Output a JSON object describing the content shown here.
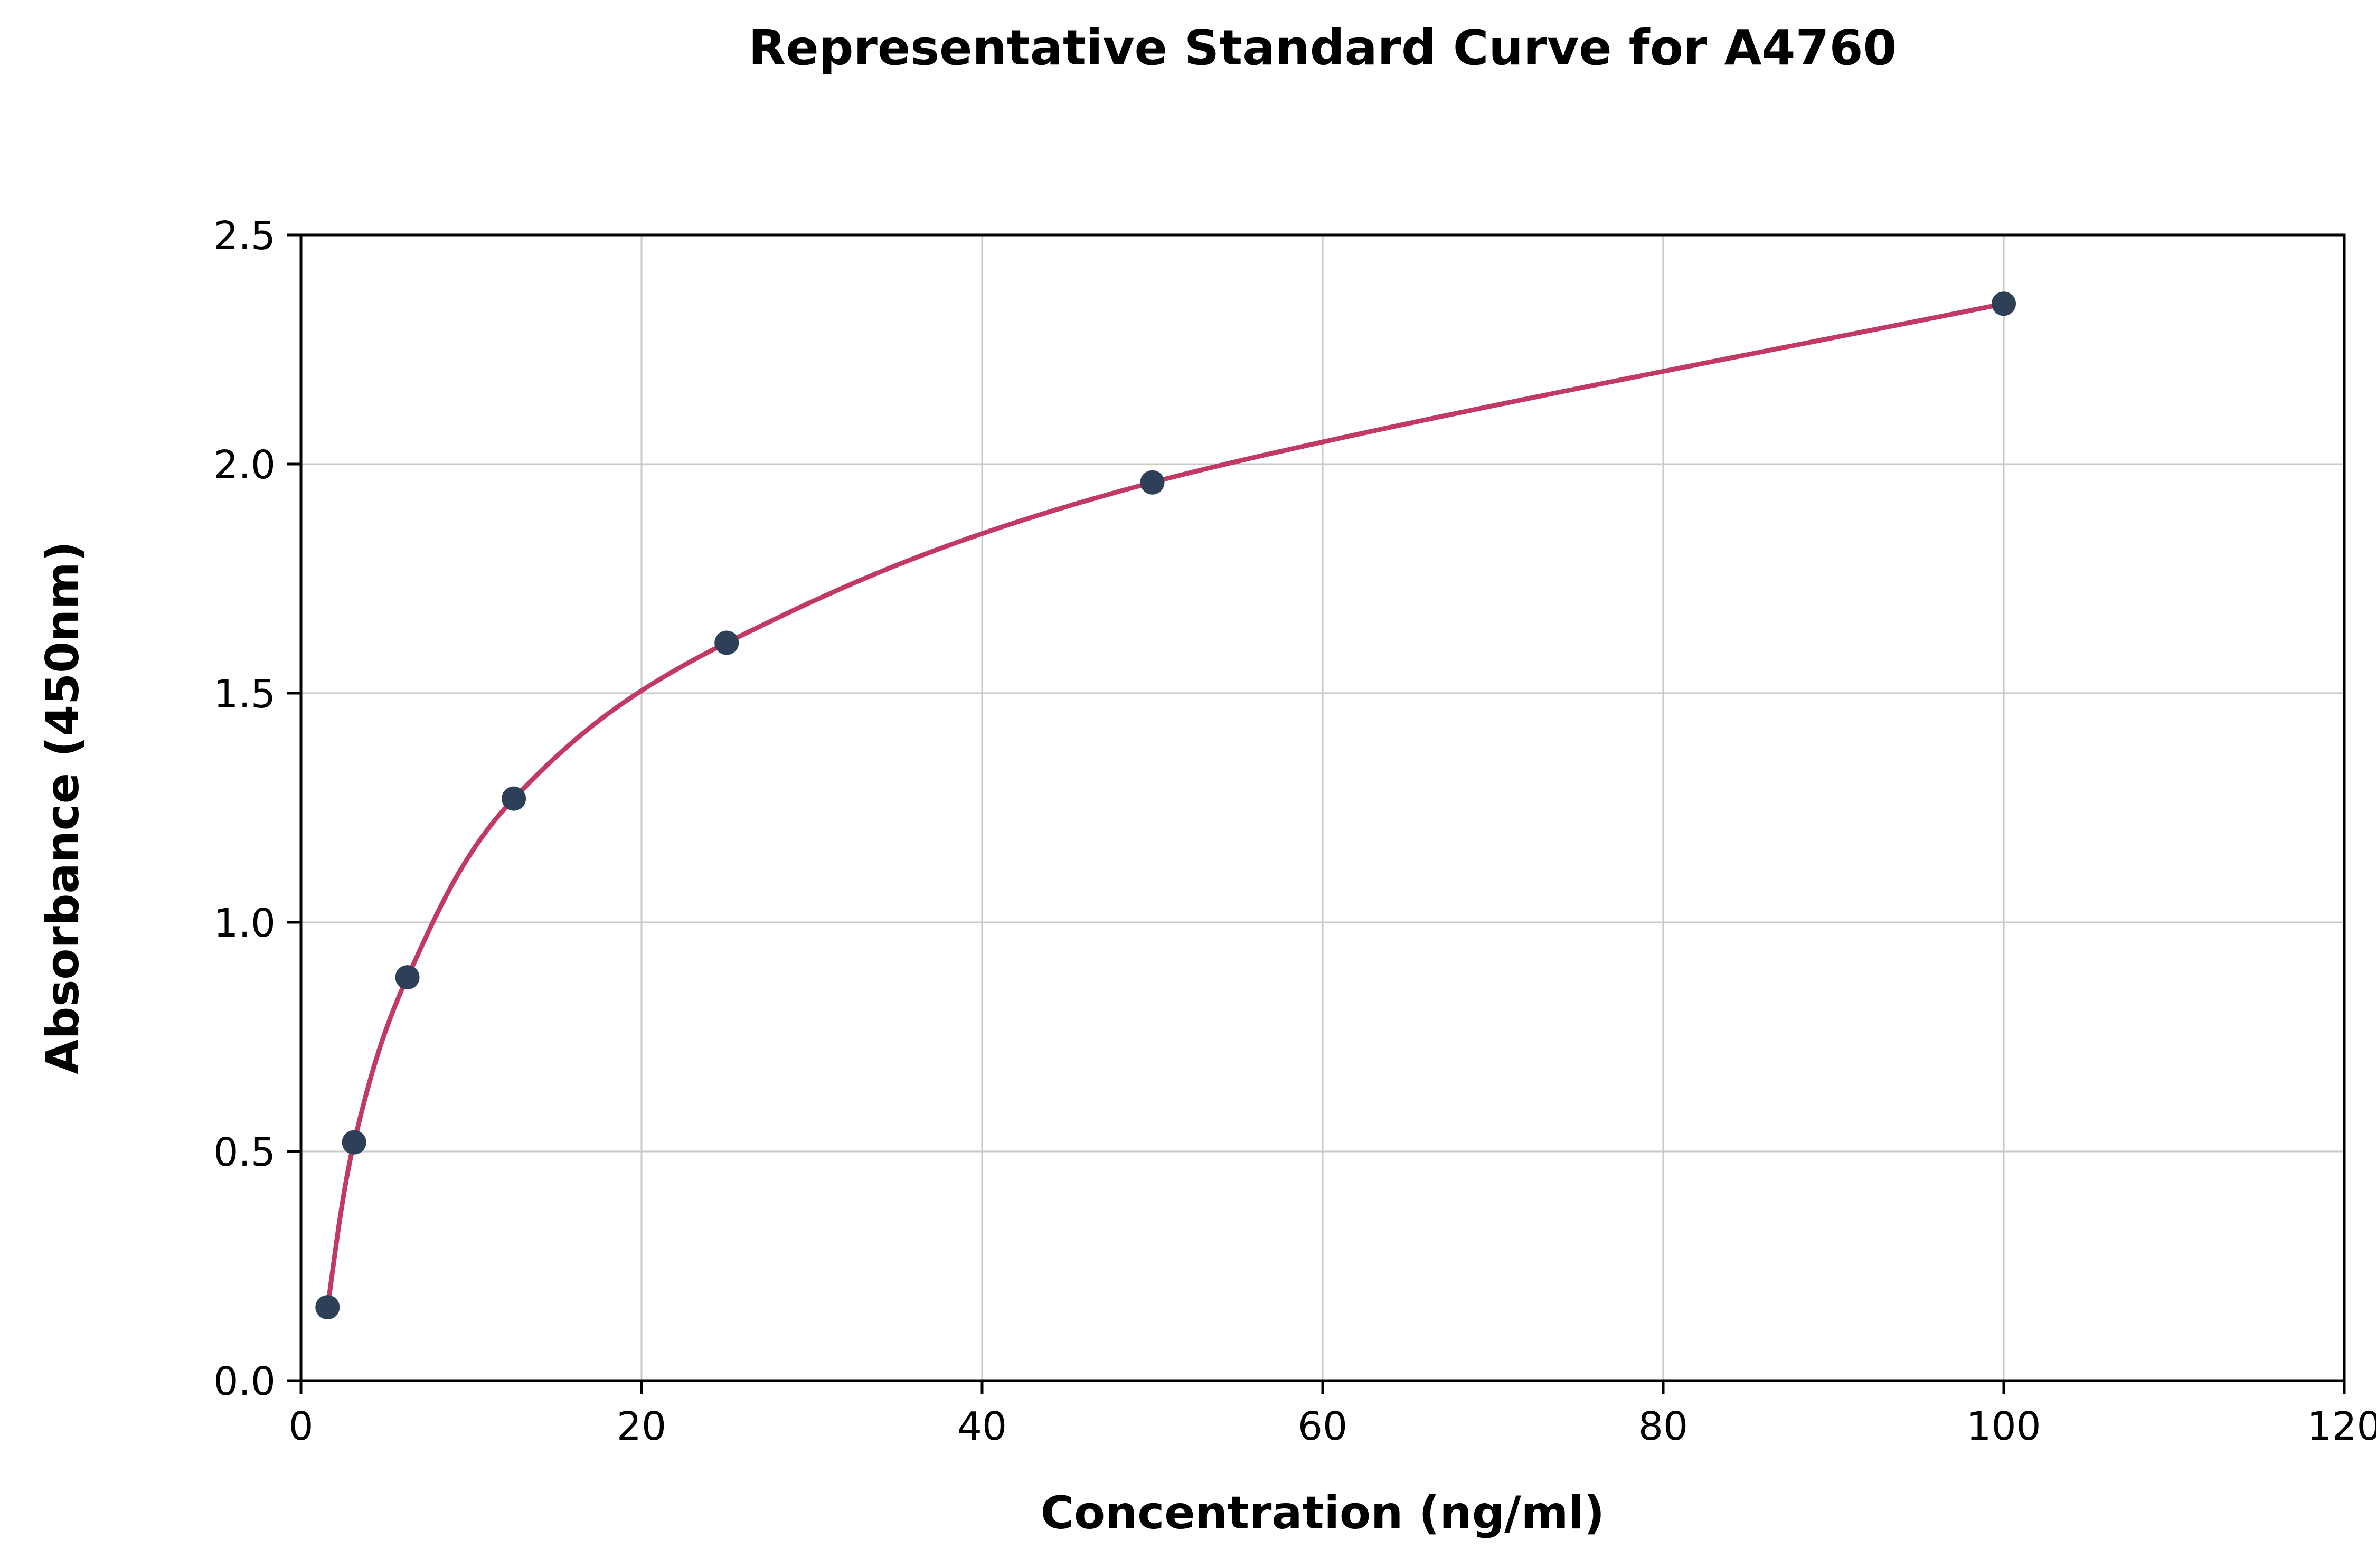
{
  "chart_data": {
    "type": "scatter",
    "title": "Representative Standard Curve for A4760",
    "xlabel": "Concentration (ng/ml)",
    "ylabel": "Absorbance (450nm)",
    "x": [
      1.56,
      3.12,
      6.25,
      12.5,
      25,
      50,
      100
    ],
    "y": [
      0.16,
      0.52,
      0.88,
      1.27,
      1.61,
      1.96,
      2.35
    ],
    "xlim": [
      0,
      120
    ],
    "ylim": [
      0,
      2.5
    ],
    "xticks": [
      0,
      20,
      40,
      60,
      80,
      100,
      120
    ],
    "yticks": [
      0.0,
      0.5,
      1.0,
      1.5,
      2.0,
      2.5
    ],
    "grid": true,
    "legend": "none",
    "line_color": "#c23a64",
    "marker_color": "#2e4058",
    "grid_color": "#c9c9c9",
    "axis_color": "#000000",
    "background_color": "#ffffff"
  }
}
